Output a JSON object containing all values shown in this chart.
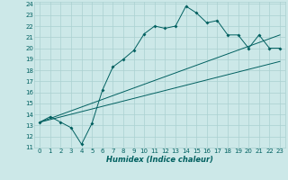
{
  "xlabel": "Humidex (Indice chaleur)",
  "bg_color": "#cce8e8",
  "grid_color": "#aad0d0",
  "line_color": "#006060",
  "xlim": [
    -0.5,
    23.5
  ],
  "ylim": [
    11,
    24.2
  ],
  "xticks": [
    0,
    1,
    2,
    3,
    4,
    5,
    6,
    7,
    8,
    9,
    10,
    11,
    12,
    13,
    14,
    15,
    16,
    17,
    18,
    19,
    20,
    21,
    22,
    23
  ],
  "yticks": [
    11,
    12,
    13,
    14,
    15,
    16,
    17,
    18,
    19,
    20,
    21,
    22,
    23,
    24
  ],
  "main_x": [
    0,
    1,
    2,
    3,
    4,
    5,
    6,
    7,
    8,
    9,
    10,
    11,
    12,
    13,
    14,
    15,
    16,
    17,
    18,
    19,
    20,
    21,
    22,
    23
  ],
  "main_y": [
    13.3,
    13.8,
    13.3,
    12.8,
    11.3,
    13.2,
    16.2,
    18.3,
    19.0,
    19.8,
    21.3,
    22.0,
    21.8,
    22.0,
    23.8,
    23.2,
    22.3,
    22.5,
    21.2,
    21.2,
    20.0,
    21.2,
    20.0,
    20.0
  ],
  "line1_x": [
    0,
    23
  ],
  "line1_y": [
    13.3,
    21.2
  ],
  "line2_x": [
    0,
    23
  ],
  "line2_y": [
    13.3,
    18.8
  ],
  "marker": "D",
  "markersize": 2.0,
  "linewidth": 0.7,
  "xlabel_fontsize": 6,
  "tick_fontsize": 5.0
}
